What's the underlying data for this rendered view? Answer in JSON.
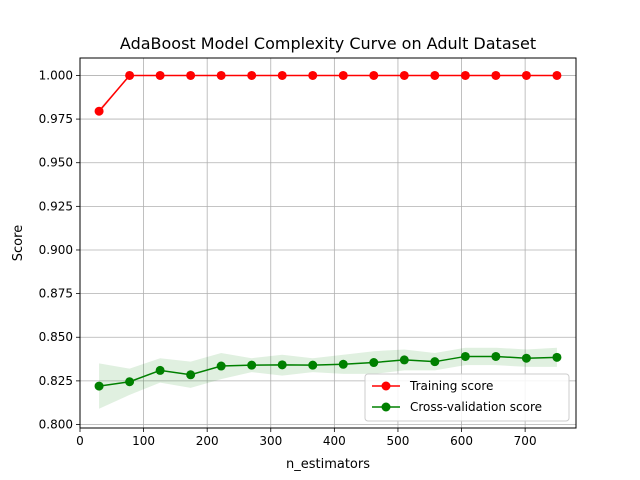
{
  "chart_data": {
    "type": "line",
    "title": "AdaBoost Model Complexity Curve on Adult Dataset",
    "xlabel": "n_estimators",
    "ylabel": "Score",
    "xlim": [
      0,
      780
    ],
    "ylim": [
      0.798,
      1.01
    ],
    "grid": true,
    "legend_position": "bottom-right",
    "x_ticks": [
      0,
      100,
      200,
      300,
      400,
      500,
      600,
      700
    ],
    "y_ticks": [
      0.8,
      0.825,
      0.85,
      0.875,
      0.9,
      0.925,
      0.95,
      0.975,
      1.0
    ],
    "x_tick_labels": [
      "0",
      "100",
      "200",
      "300",
      "400",
      "500",
      "600",
      "700"
    ],
    "y_tick_labels": [
      "0.800",
      "0.825",
      "0.850",
      "0.875",
      "0.900",
      "0.925",
      "0.950",
      "0.975",
      "1.000"
    ],
    "x": [
      30,
      78,
      126,
      174,
      222,
      270,
      318,
      366,
      414,
      462,
      510,
      558,
      606,
      654,
      702,
      750
    ],
    "series": [
      {
        "name": "Training score",
        "color": "#ff0000",
        "values": [
          0.9795,
          1.0,
          1.0,
          1.0,
          1.0,
          1.0,
          1.0,
          1.0,
          1.0,
          1.0,
          1.0,
          1.0,
          1.0,
          1.0,
          1.0,
          1.0
        ],
        "band_upper": [
          0.981,
          1.0,
          1.0,
          1.0,
          1.0,
          1.0,
          1.0,
          1.0,
          1.0,
          1.0,
          1.0,
          1.0,
          1.0,
          1.0,
          1.0,
          1.0
        ],
        "band_lower": [
          0.978,
          1.0,
          1.0,
          1.0,
          1.0,
          1.0,
          1.0,
          1.0,
          1.0,
          1.0,
          1.0,
          1.0,
          1.0,
          1.0,
          1.0,
          1.0
        ]
      },
      {
        "name": "Cross-validation score",
        "color": "#008000",
        "values": [
          0.822,
          0.8245,
          0.831,
          0.8285,
          0.8335,
          0.834,
          0.8342,
          0.834,
          0.8345,
          0.8355,
          0.837,
          0.836,
          0.839,
          0.839,
          0.838,
          0.8385
        ],
        "band_upper": [
          0.835,
          0.832,
          0.838,
          0.836,
          0.841,
          0.838,
          0.84,
          0.838,
          0.84,
          0.842,
          0.843,
          0.841,
          0.844,
          0.844,
          0.843,
          0.844
        ],
        "band_lower": [
          0.809,
          0.817,
          0.824,
          0.821,
          0.826,
          0.83,
          0.828,
          0.83,
          0.829,
          0.829,
          0.831,
          0.831,
          0.834,
          0.834,
          0.833,
          0.833
        ]
      }
    ]
  }
}
